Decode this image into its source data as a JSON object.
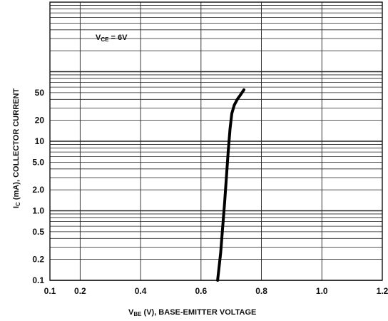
{
  "chart_data": {
    "type": "line",
    "xlabel_main": "V",
    "xlabel_sub": "BE",
    "xlabel_rest": " (V), BASE-EMITTER VOLTAGE",
    "ylabel_main": "I",
    "ylabel_sub": "C",
    "ylabel_rest": " (mA), COLLECTOR  CURRENT",
    "annotation_main": "V",
    "annotation_sub": "CE",
    "annotation_rest": " = 6V",
    "x_scale": "linear",
    "y_scale": "log",
    "xlim": [
      0.1,
      1.2
    ],
    "ylim": [
      0.1,
      1000
    ],
    "x_ticks": [
      0.1,
      0.2,
      0.4,
      0.6,
      0.8,
      1.0,
      1.2
    ],
    "x_tick_labels": [
      "0.1",
      "0.2",
      "0.4",
      "0.6",
      "0.8",
      "1.0",
      "1.2"
    ],
    "y_ticks": [
      0.1,
      0.2,
      0.5,
      1,
      2,
      5,
      10,
      20,
      50
    ],
    "y_tick_labels": [
      "0.1",
      "0.2",
      "0.5",
      "1.0",
      "2.0",
      "5.0",
      "10",
      "20",
      "50"
    ],
    "grid": true,
    "series": [
      {
        "x": [
          0.655,
          0.665,
          0.672,
          0.678,
          0.684,
          0.69,
          0.696,
          0.702,
          0.71,
          0.72,
          0.73,
          0.742
        ],
        "y": [
          0.1,
          0.25,
          0.6,
          1.3,
          3,
          7,
          15,
          25,
          33,
          40,
          46,
          55
        ]
      }
    ]
  }
}
